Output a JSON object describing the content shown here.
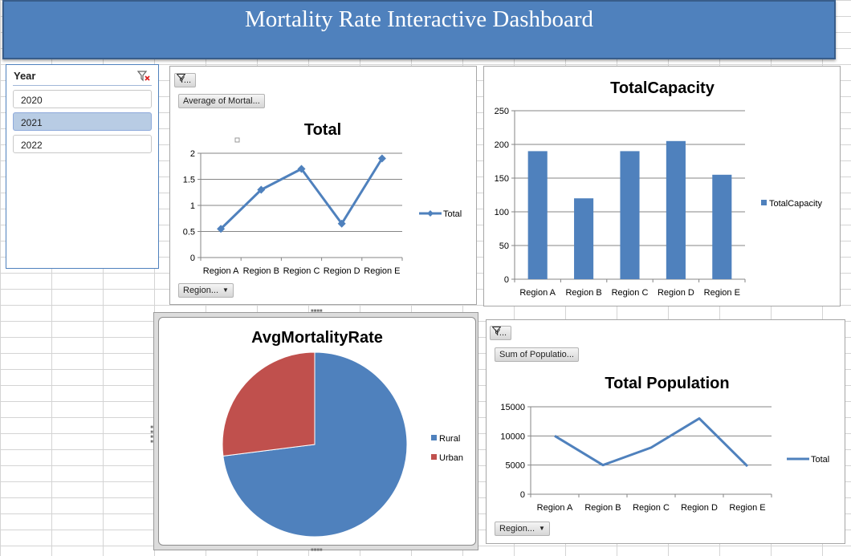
{
  "banner": {
    "title": "Mortality Rate Interactive Dashboard"
  },
  "colors": {
    "accent": "#4f81bd",
    "urban": "#c0504d",
    "selected_item": "#b8cce4"
  },
  "slicer": {
    "title": "Year",
    "clear_icon": "clear-filter-icon",
    "items": [
      {
        "label": "2020",
        "selected": false
      },
      {
        "label": "2021",
        "selected": true
      },
      {
        "label": "2022",
        "selected": false
      }
    ]
  },
  "pivot_buttons": {
    "total_year": "Y...",
    "total_value": "Average of Mortal...",
    "total_region": "Region...",
    "population_year": "Y...",
    "population_value": "Sum of Populatio...",
    "population_region": "Region..."
  },
  "chart_data": [
    {
      "type": "line",
      "title": "Total",
      "categories": [
        "Region A",
        "Region B",
        "Region C",
        "Region D",
        "Region E"
      ],
      "series": [
        {
          "name": "Total",
          "values": [
            0.55,
            1.3,
            1.7,
            0.65,
            1.9
          ]
        }
      ],
      "yticks": [
        "0",
        "0.5",
        "1",
        "1.5",
        "2"
      ],
      "ylim": [
        0,
        2
      ],
      "markers": true,
      "grid": true,
      "legend": "right"
    },
    {
      "type": "bar",
      "title": "TotalCapacity",
      "categories": [
        "Region A",
        "Region B",
        "Region C",
        "Region D",
        "Region E"
      ],
      "series": [
        {
          "name": "TotalCapacity",
          "values": [
            190,
            120,
            190,
            205,
            155
          ]
        }
      ],
      "yticks": [
        "0",
        "50",
        "100",
        "150",
        "200",
        "250"
      ],
      "ylim": [
        0,
        250
      ],
      "grid": true,
      "legend": "right"
    },
    {
      "type": "pie",
      "title": "AvgMortalityRate",
      "categories": [
        "Rural",
        "Urban"
      ],
      "values": [
        73,
        27
      ],
      "colors": [
        "#4f81bd",
        "#c0504d"
      ],
      "legend": "right"
    },
    {
      "type": "line",
      "title": "Total Population",
      "categories": [
        "Region A",
        "Region B",
        "Region C",
        "Region D",
        "Region E"
      ],
      "series": [
        {
          "name": "Total",
          "values": [
            10000,
            5000,
            8000,
            13000,
            4800
          ]
        }
      ],
      "yticks": [
        "0",
        "5000",
        "10000",
        "15000"
      ],
      "ylim": [
        0,
        15000
      ],
      "markers": false,
      "grid": true,
      "legend": "right"
    }
  ]
}
